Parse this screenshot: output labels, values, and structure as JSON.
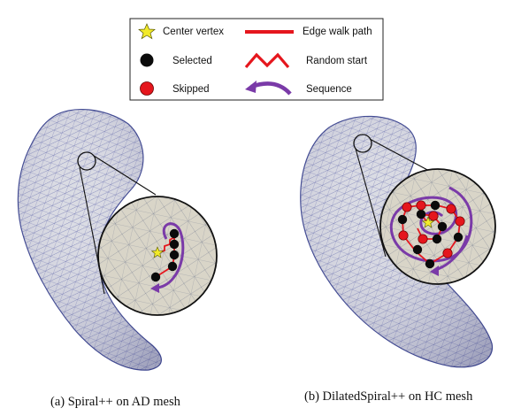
{
  "legend": {
    "center_vertex": "Center vertex",
    "selected": "Selected",
    "skipped": "Skipped",
    "edge_walk_path": "Edge walk path",
    "random_start": "Random start",
    "sequence": "Sequence"
  },
  "captions": {
    "left": "(a) Spiral++ on AD mesh",
    "right": "(b) DilatedSpiral++ on HC mesh"
  },
  "colors": {
    "edge_walk": "#e5161d",
    "selected": "#0b0b0b",
    "skipped": "#e5161d",
    "star": "#f2ea2a",
    "sequence": "#7a3aa8",
    "mesh_fill": "#d8d8e0",
    "mesh_line": "#4a56a0",
    "zoom_fill": "#d9d5c8"
  }
}
